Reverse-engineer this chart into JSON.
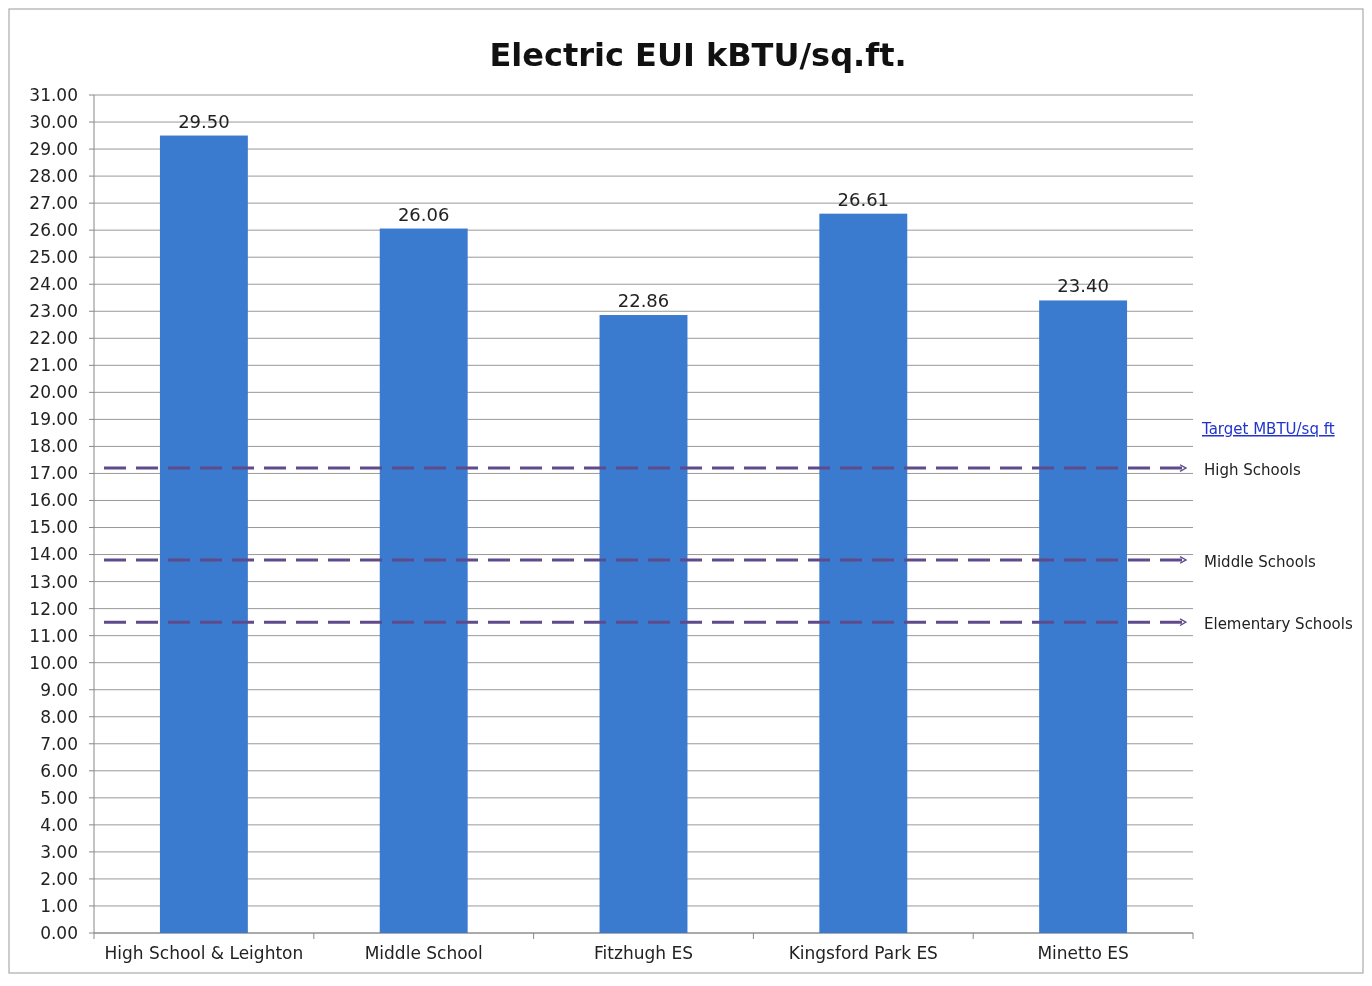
{
  "chart_data": {
    "type": "bar",
    "title": "Electric EUI kBTU/sq.ft.",
    "categories": [
      "High School & Leighton",
      "Middle School",
      "Fitzhugh ES",
      "Kingsford Park ES",
      "Minetto ES"
    ],
    "values": [
      29.5,
      26.06,
      22.86,
      26.61,
      23.4
    ],
    "color": "#3a7bd0",
    "value_labels": [
      "29.50",
      "26.06",
      "22.86",
      "26.61",
      "23.40"
    ],
    "ylim": [
      0,
      31
    ],
    "yticks": [
      {
        "value": 0,
        "label": "0.00"
      },
      {
        "value": 1,
        "label": "1.00"
      },
      {
        "value": 2,
        "label": "2.00"
      },
      {
        "value": 3,
        "label": "3.00"
      },
      {
        "value": 4,
        "label": "4.00"
      },
      {
        "value": 5,
        "label": "5.00"
      },
      {
        "value": 6,
        "label": "6.00"
      },
      {
        "value": 7,
        "label": "7.00"
      },
      {
        "value": 8,
        "label": "8.00"
      },
      {
        "value": 9,
        "label": "9.00"
      },
      {
        "value": 10,
        "label": "10.00"
      },
      {
        "value": 11,
        "label": "11.00"
      },
      {
        "value": 12,
        "label": "12.00"
      },
      {
        "value": 13,
        "label": "13.00"
      },
      {
        "value": 14,
        "label": "14.00"
      },
      {
        "value": 15,
        "label": "15.00"
      },
      {
        "value": 16,
        "label": "16.00"
      },
      {
        "value": 17,
        "label": "17.00"
      },
      {
        "value": 18,
        "label": "18.00"
      },
      {
        "value": 19,
        "label": "19.00"
      },
      {
        "value": 20,
        "label": "20.00"
      },
      {
        "value": 21,
        "label": "21.00"
      },
      {
        "value": 22,
        "label": "22.00"
      },
      {
        "value": 23,
        "label": "23.00"
      },
      {
        "value": 24,
        "label": "24.00"
      },
      {
        "value": 25,
        "label": "25.00"
      },
      {
        "value": 26,
        "label": "26.00"
      },
      {
        "value": 27,
        "label": "27.00"
      },
      {
        "value": 28,
        "label": "28.00"
      },
      {
        "value": 29,
        "label": "29.00"
      },
      {
        "value": 30,
        "label": "30.00"
      },
      {
        "value": 31,
        "label": "31.00"
      }
    ],
    "grid": "y",
    "ref_lines": [
      {
        "axis": "y",
        "value": 17.2,
        "label": "High Schools",
        "color": "#5f4b8b",
        "line_style": "dashed"
      },
      {
        "axis": "y",
        "value": 13.8,
        "label": "Middle Schools",
        "color": "#5f4b8b",
        "line_style": "dashed"
      },
      {
        "axis": "y",
        "value": 11.5,
        "label": "Elementary Schools",
        "color": "#5f4b8b",
        "line_style": "dashed"
      }
    ],
    "annotations": [
      "Target MBTU/sq ft"
    ]
  }
}
